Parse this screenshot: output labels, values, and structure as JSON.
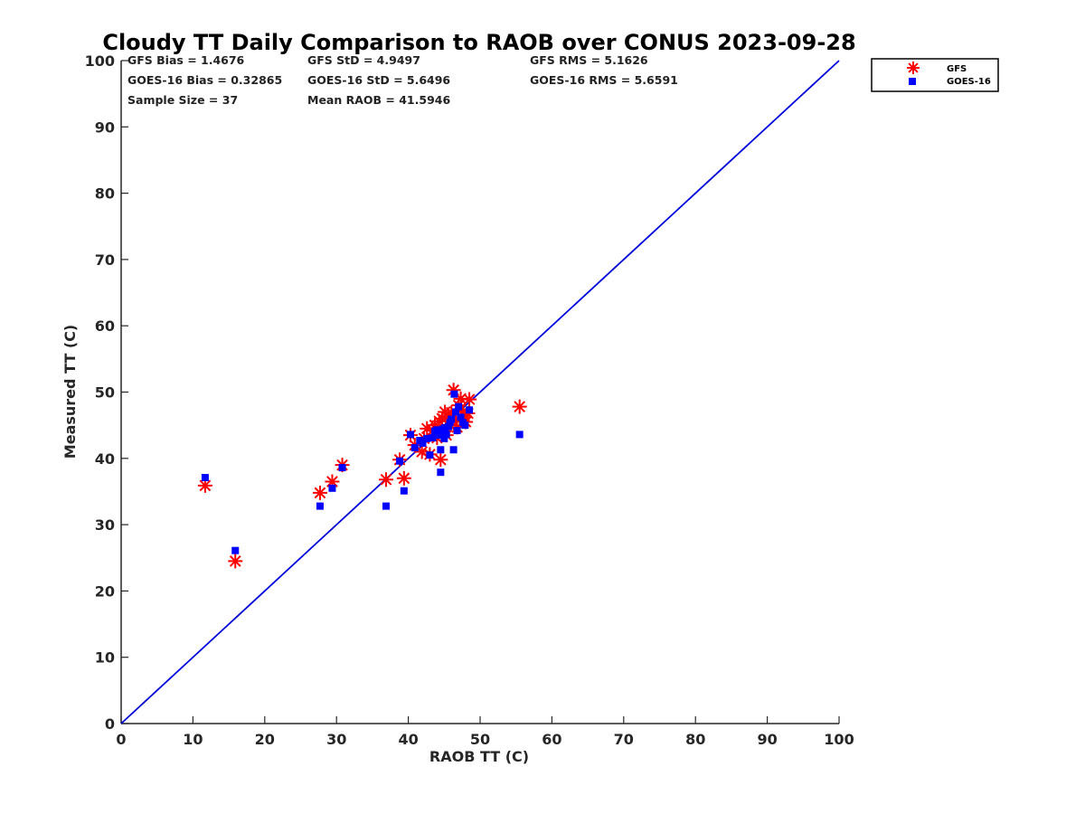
{
  "chart_data": {
    "type": "scatter",
    "title": "Cloudy TT Daily Comparison to RAOB over CONUS 2023-09-28",
    "xlabel": "RAOB TT (C)",
    "ylabel": "Measured TT (C)",
    "xlim": [
      0,
      100
    ],
    "ylim": [
      0,
      100
    ],
    "xticks": [
      "0",
      "10",
      "20",
      "30",
      "40",
      "50",
      "60",
      "70",
      "80",
      "90",
      "100"
    ],
    "yticks": [
      "0",
      "10",
      "20",
      "30",
      "40",
      "50",
      "60",
      "70",
      "80",
      "90",
      "100"
    ],
    "grid": false,
    "legend_position": "top-right outside",
    "reference_line": {
      "from": [
        0,
        0
      ],
      "to": [
        100,
        100
      ],
      "color": "#0000dd"
    },
    "stats": [
      [
        "GFS Bias = 1.4676",
        "GFS StD = 4.9497",
        "GFS RMS = 5.1626"
      ],
      [
        "GOES-16 Bias = 0.32865",
        "GOES-16 StD = 5.6496",
        "GOES-16 RMS = 5.6591"
      ],
      [
        "Sample Size = 37",
        "Mean RAOB = 41.5946",
        ""
      ]
    ],
    "series": [
      {
        "name": "GFS",
        "marker": "asterisk",
        "color": "#ff0000",
        "points": [
          [
            11.7,
            35.9
          ],
          [
            15.9,
            24.5
          ],
          [
            27.7,
            34.8
          ],
          [
            29.4,
            36.5
          ],
          [
            30.8,
            39.0
          ],
          [
            36.9,
            36.8
          ],
          [
            38.8,
            39.8
          ],
          [
            39.4,
            37.0
          ],
          [
            40.3,
            43.5
          ],
          [
            40.9,
            42.0
          ],
          [
            41.9,
            41.0
          ],
          [
            42.6,
            44.5
          ],
          [
            43.0,
            40.6
          ],
          [
            43.4,
            44.2
          ],
          [
            43.7,
            45.0
          ],
          [
            44.0,
            43.1
          ],
          [
            44.3,
            45.6
          ],
          [
            44.5,
            39.8
          ],
          [
            44.7,
            46.0
          ],
          [
            45.0,
            44.1
          ],
          [
            45.3,
            43.5
          ],
          [
            45.6,
            46.4
          ],
          [
            45.8,
            45.0
          ],
          [
            46.0,
            46.9
          ],
          [
            46.3,
            50.3
          ],
          [
            46.6,
            46.0
          ],
          [
            46.8,
            44.7
          ],
          [
            47.0,
            48.0
          ],
          [
            47.3,
            49.0
          ],
          [
            47.6,
            47.0
          ],
          [
            47.8,
            46.4
          ],
          [
            48.0,
            45.5
          ],
          [
            48.3,
            46.8
          ],
          [
            48.5,
            48.9
          ],
          [
            55.5,
            47.8
          ],
          [
            42.2,
            43.0
          ],
          [
            45.1,
            47.0
          ]
        ]
      },
      {
        "name": "GOES-16",
        "marker": "square",
        "color": "#0000ff",
        "points": [
          [
            11.7,
            37.1
          ],
          [
            15.9,
            26.1
          ],
          [
            27.7,
            32.8
          ],
          [
            29.4,
            35.5
          ],
          [
            30.8,
            38.6
          ],
          [
            36.9,
            32.8
          ],
          [
            38.8,
            39.6
          ],
          [
            39.4,
            35.1
          ],
          [
            40.3,
            43.6
          ],
          [
            40.9,
            41.6
          ],
          [
            41.6,
            42.7
          ],
          [
            42.6,
            43.0
          ],
          [
            43.0,
            40.5
          ],
          [
            43.4,
            43.1
          ],
          [
            43.7,
            44.1
          ],
          [
            44.0,
            44.3
          ],
          [
            44.3,
            43.5
          ],
          [
            44.5,
            37.9
          ],
          [
            44.5,
            41.3
          ],
          [
            44.8,
            44.4
          ],
          [
            45.0,
            43.0
          ],
          [
            45.3,
            43.6
          ],
          [
            45.6,
            44.8
          ],
          [
            45.8,
            45.4
          ],
          [
            46.0,
            45.9
          ],
          [
            46.3,
            41.3
          ],
          [
            46.4,
            49.7
          ],
          [
            46.6,
            47.0
          ],
          [
            46.8,
            44.2
          ],
          [
            47.0,
            47.8
          ],
          [
            47.3,
            46.2
          ],
          [
            47.6,
            45.4
          ],
          [
            47.9,
            45.0
          ],
          [
            48.5,
            47.3
          ],
          [
            55.5,
            43.6
          ],
          [
            42.0,
            42.3
          ],
          [
            45.1,
            44.6
          ]
        ]
      }
    ]
  }
}
